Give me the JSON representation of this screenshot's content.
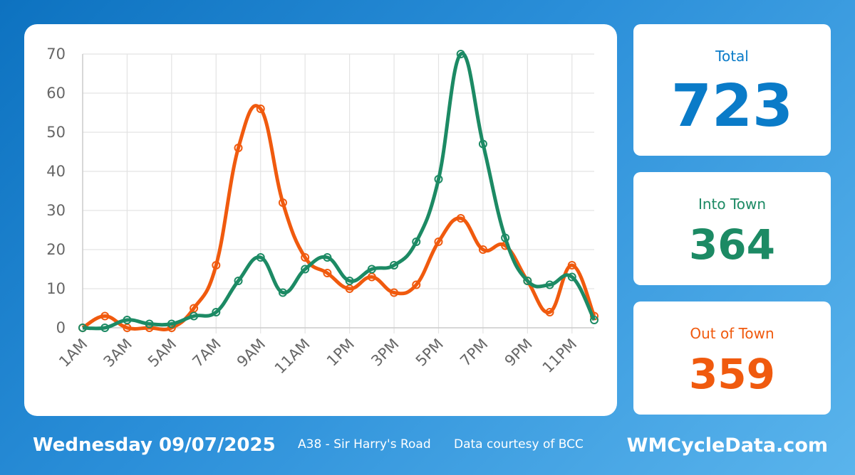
{
  "chart_data": {
    "type": "line",
    "categories": [
      "1AM",
      "2AM",
      "3AM",
      "4AM",
      "5AM",
      "6AM",
      "7AM",
      "8AM",
      "9AM",
      "10AM",
      "11AM",
      "12PM",
      "1PM",
      "2PM",
      "3PM",
      "4PM",
      "5PM",
      "6PM",
      "7PM",
      "8PM",
      "9PM",
      "10PM",
      "11PM",
      "12AM"
    ],
    "x_tick_labels": [
      "1AM",
      "3AM",
      "5AM",
      "7AM",
      "9AM",
      "11AM",
      "1PM",
      "3PM",
      "5PM",
      "7PM",
      "9PM",
      "11PM"
    ],
    "series": [
      {
        "name": "Out of Town",
        "color": "#f05a0e",
        "values": [
          0,
          3,
          0,
          0,
          0,
          5,
          16,
          46,
          56,
          32,
          18,
          14,
          10,
          13,
          9,
          11,
          22,
          28,
          20,
          21,
          12,
          4,
          16,
          3
        ]
      },
      {
        "name": "Into Town",
        "color": "#1c8a64",
        "values": [
          0,
          0,
          2,
          1,
          1,
          3,
          4,
          12,
          18,
          9,
          15,
          18,
          12,
          15,
          16,
          22,
          38,
          70,
          47,
          23,
          12,
          11,
          13,
          2
        ]
      }
    ],
    "ylim": [
      0,
      70
    ],
    "y_ticks": [
      0,
      10,
      20,
      30,
      40,
      50,
      60,
      70
    ],
    "grid": true,
    "title": "",
    "xlabel": "",
    "ylabel": ""
  },
  "stats": {
    "total": {
      "label": "Total",
      "value": "723",
      "color": "#0a7bc8"
    },
    "into": {
      "label": "Into Town",
      "value": "364",
      "color": "#1c8a64"
    },
    "out": {
      "label": "Out of Town",
      "value": "359",
      "color": "#f05a0e"
    }
  },
  "footer": {
    "date": "Wednesday 09/07/2025",
    "location": "A38 - Sir Harry's Road",
    "credit": "Data courtesy of BCC",
    "site": "WMCycleData.com"
  }
}
